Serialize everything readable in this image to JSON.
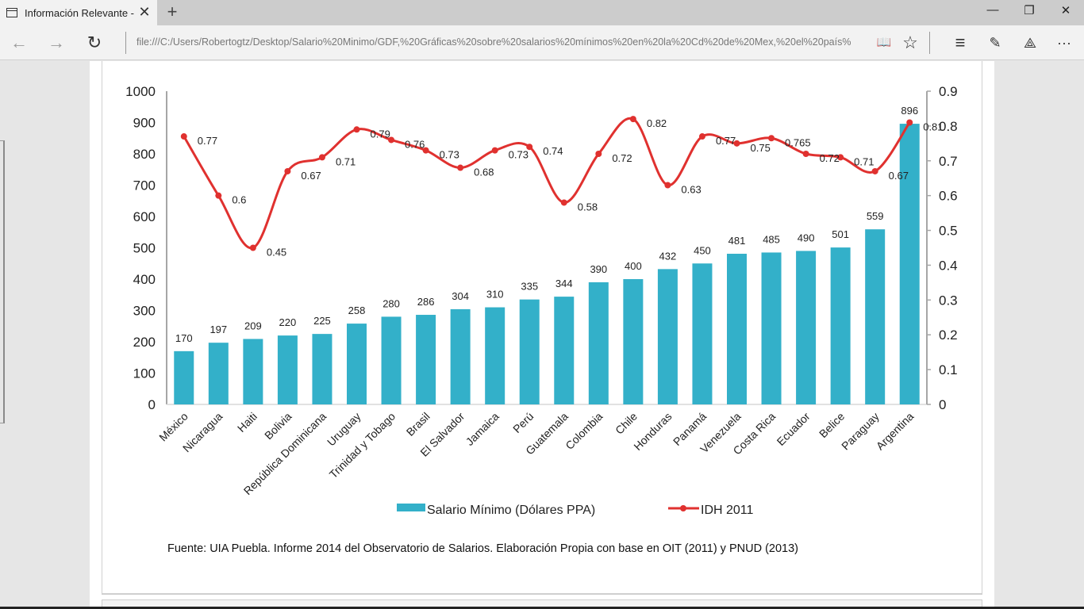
{
  "browser": {
    "tab_title": "Información Relevante -",
    "tab_close": "✕",
    "new_tab": "+",
    "address": "file:///C:/Users/Robertogtz/Desktop/Salario%20Minimo/GDF,%20Gráficas%20sobre%20salarios%20mínimos%20en%20la%20Cd%20de%20Mex,%20el%20país%",
    "back": "←",
    "forward": "→",
    "refresh": "↻",
    "minimize": "—",
    "restore": "❐",
    "close": "✕",
    "reading_view": "📖",
    "favorite": "☆",
    "hub": "≡",
    "web_note": "✎",
    "share": "⟁",
    "more": "···"
  },
  "chart_data": {
    "type": "bar+line",
    "title": "",
    "categories": [
      "México",
      "Nicaragua",
      "Haiti",
      "Bolivia",
      "República Dominicana",
      "Uruguay",
      "Trinidad y Tobago",
      "Brasil",
      "El Salvador",
      "Jamaica",
      "Perú",
      "Guatemala",
      "Colombia",
      "Chile",
      "Honduras",
      "Panamá",
      "Venezuela",
      "Costa Rica",
      "Ecuador",
      "Belice",
      "Paraguay",
      "Argentina"
    ],
    "series": [
      {
        "name": "Salario Mínimo (Dólares PPA)",
        "type": "bar",
        "axis": "left",
        "color": "#33b0c9",
        "values": [
          170,
          197,
          209,
          220,
          225,
          258,
          280,
          286,
          304,
          310,
          335,
          344,
          390,
          400,
          432,
          450,
          481,
          485,
          490,
          501,
          559,
          896
        ],
        "labels": [
          "170",
          "197",
          "209",
          "220",
          "225",
          "258",
          "280",
          "286",
          "304",
          "310",
          "335",
          "344",
          "390",
          "400",
          "432",
          "450",
          "481",
          "485",
          "490",
          "501",
          "559",
          "896"
        ]
      },
      {
        "name": "IDH 2011",
        "type": "line",
        "axis": "right",
        "color": "#e0312f",
        "values": [
          0.77,
          0.6,
          0.45,
          0.67,
          0.71,
          0.79,
          0.76,
          0.73,
          0.68,
          0.73,
          0.74,
          0.58,
          0.72,
          0.82,
          0.63,
          0.77,
          0.75,
          0.765,
          0.72,
          0.71,
          0.67,
          0.81
        ],
        "labels": [
          "0.77",
          "0.6",
          "0.45",
          "0.67",
          "0.71",
          "0.79",
          "0.76",
          "0.73",
          "0.68",
          "0.73",
          "0.74",
          "0.58",
          "0.72",
          "0.82",
          "0.63",
          "0.77",
          "0.75",
          "0.765",
          "0.72",
          "0.71",
          "0.67",
          "0.81"
        ]
      }
    ],
    "y_left": {
      "ylim": [
        0,
        1000
      ],
      "ticks": [
        "0",
        "100",
        "200",
        "300",
        "400",
        "500",
        "600",
        "700",
        "800",
        "900",
        "1000"
      ]
    },
    "y_right": {
      "ylim": [
        0,
        0.9
      ],
      "ticks": [
        "0",
        "0.1",
        "0.2",
        "0.3",
        "0.4",
        "0.5",
        "0.6",
        "0.7",
        "0.8",
        "0.9"
      ]
    },
    "xlabel": "",
    "ylabel": "",
    "grid": false,
    "legend": {
      "placement": "bottom",
      "entries": [
        "Salario Mínimo (Dólares PPA)",
        "IDH 2011"
      ]
    },
    "source": "Fuente: UIA Puebla. Informe 2014 del Observatorio de Salarios. Elaboración Propia con base en OIT (2011) y PNUD (2013)"
  }
}
